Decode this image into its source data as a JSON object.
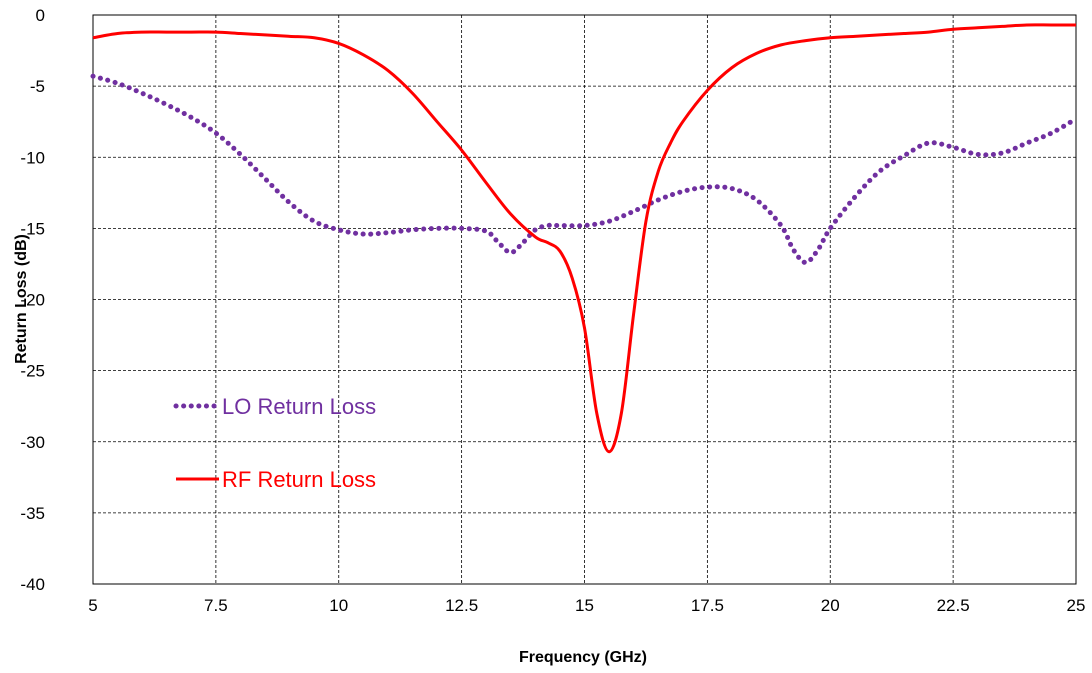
{
  "chart_data": {
    "type": "line",
    "title": "",
    "xlabel": "Frequency (GHz)",
    "ylabel": "Return Loss (dB)",
    "xlim": [
      5,
      25
    ],
    "ylim": [
      -40,
      0
    ],
    "x_ticks": [
      "5",
      "7.5",
      "10",
      "12.5",
      "15",
      "17.5",
      "20",
      "22.5",
      "25"
    ],
    "y_ticks": [
      "0",
      "-5",
      "-10",
      "-15",
      "-20",
      "-25",
      "-30",
      "-35",
      "-40"
    ],
    "grid": true,
    "legend_position": "left-middle",
    "series": [
      {
        "name": "LO Return Loss",
        "color": "#7030a0",
        "style": "dotted",
        "x": [
          5,
          5.5,
          6,
          6.5,
          7,
          7.5,
          8,
          8.5,
          9,
          9.5,
          10,
          10.5,
          11,
          11.5,
          12,
          12.5,
          13,
          13.25,
          13.5,
          13.75,
          14,
          14.25,
          14.5,
          15,
          15.5,
          16,
          16.5,
          17,
          17.5,
          18,
          18.5,
          19,
          19.25,
          19.5,
          19.75,
          20,
          20.5,
          21,
          21.5,
          22,
          22.5,
          23,
          23.5,
          24,
          24.5,
          25
        ],
        "y": [
          -4.3,
          -4.8,
          -5.5,
          -6.3,
          -7.2,
          -8.3,
          -9.8,
          -11.5,
          -13.2,
          -14.5,
          -15.1,
          -15.4,
          -15.3,
          -15.1,
          -15.0,
          -15.0,
          -15.2,
          -16.0,
          -16.7,
          -16.0,
          -15.1,
          -14.8,
          -14.8,
          -14.8,
          -14.5,
          -13.8,
          -13.0,
          -12.4,
          -12.1,
          -12.2,
          -13.0,
          -14.8,
          -16.5,
          -17.4,
          -16.5,
          -15.0,
          -12.8,
          -11.0,
          -9.9,
          -9.0,
          -9.3,
          -9.8,
          -9.7,
          -9.0,
          -8.3,
          -7.3
        ]
      },
      {
        "name": "RF Return Loss",
        "color": "#ff0000",
        "style": "solid",
        "x": [
          5,
          5.5,
          6,
          6.5,
          7,
          7.5,
          8,
          8.5,
          9,
          9.5,
          10,
          10.5,
          11,
          11.5,
          12,
          12.5,
          13,
          13.5,
          14,
          14.25,
          14.5,
          14.75,
          15,
          15.25,
          15.5,
          15.75,
          16,
          16.25,
          16.5,
          16.75,
          17,
          17.5,
          18,
          18.5,
          19,
          19.5,
          20,
          20.5,
          21,
          21.5,
          22,
          22.5,
          23,
          23.5,
          24,
          24.5,
          25
        ],
        "y": [
          -1.6,
          -1.3,
          -1.2,
          -1.2,
          -1.2,
          -1.2,
          -1.3,
          -1.4,
          -1.5,
          -1.6,
          -2.0,
          -2.8,
          -3.9,
          -5.5,
          -7.5,
          -9.5,
          -11.8,
          -14.0,
          -15.6,
          -16.0,
          -16.6,
          -18.5,
          -22.0,
          -28.0,
          -30.7,
          -28.0,
          -21.0,
          -14.5,
          -11.0,
          -9.0,
          -7.5,
          -5.3,
          -3.7,
          -2.7,
          -2.1,
          -1.8,
          -1.6,
          -1.5,
          -1.4,
          -1.3,
          -1.2,
          -1.0,
          -0.9,
          -0.8,
          -0.7,
          -0.7,
          -0.7
        ]
      }
    ]
  }
}
